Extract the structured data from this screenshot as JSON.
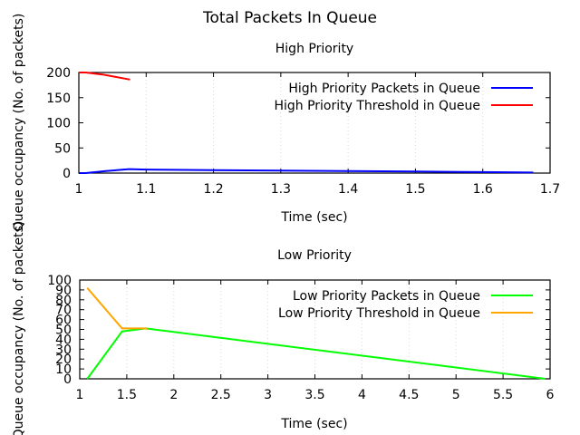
{
  "figure_title": "Total Packets In Queue",
  "chart_data": [
    {
      "type": "line",
      "title": "High Priority",
      "xlabel": "Time (sec)",
      "ylabel": "Queue occupancy (No. of packets)",
      "xlim": [
        1,
        1.7
      ],
      "ylim": [
        0,
        200
      ],
      "xticks": [
        1,
        1.1,
        1.2,
        1.3,
        1.4,
        1.5,
        1.6,
        1.7
      ],
      "xtick_labels": [
        "1",
        "1.1",
        "1.2",
        "1.3",
        "1.4",
        "1.5",
        "1.6",
        "1.7"
      ],
      "yticks": [
        0,
        50,
        100,
        150,
        200
      ],
      "ytick_labels": [
        "0",
        "50",
        "100",
        "150",
        "200"
      ],
      "grid": "vertical dotted",
      "legend_position": "top-right",
      "series": [
        {
          "name": "High Priority Packets in Queue",
          "color": "#0000ff",
          "x": [
            1.0,
            1.01,
            1.04,
            1.075,
            1.1,
            1.2,
            1.3,
            1.4,
            1.5,
            1.6,
            1.675
          ],
          "y": [
            0,
            0,
            4,
            8,
            7,
            6,
            5,
            4,
            3,
            2,
            1
          ]
        },
        {
          "name": "High Priority Threshold in Queue",
          "color": "#ff0000",
          "x": [
            1.0,
            1.01,
            1.035,
            1.076
          ],
          "y": [
            200,
            200,
            196,
            186
          ]
        }
      ]
    },
    {
      "type": "line",
      "title": "Low Priority",
      "xlabel": "Time (sec)",
      "ylabel": "Queue occupancy (No. of packets)",
      "xlim": [
        1,
        6
      ],
      "ylim": [
        0,
        100
      ],
      "xticks": [
        1,
        1.5,
        2,
        2.5,
        3,
        3.5,
        4,
        4.5,
        5,
        5.5,
        6
      ],
      "xtick_labels": [
        "1",
        "1.5",
        "2",
        "2.5",
        "3",
        "3.5",
        "4",
        "4.5",
        "5",
        "5.5",
        "6"
      ],
      "yticks": [
        0,
        10,
        20,
        30,
        40,
        50,
        60,
        70,
        80,
        90,
        100
      ],
      "ytick_labels": [
        "0",
        "10",
        "20",
        "30",
        "40",
        "50",
        "60",
        "70",
        "80",
        "90",
        "100"
      ],
      "grid": "vertical dotted",
      "legend_position": "top-right",
      "series": [
        {
          "name": "Low Priority Packets in Queue",
          "color": "#00ff00",
          "x": [
            1.08,
            1.45,
            1.7,
            5.95
          ],
          "y": [
            0,
            48,
            51,
            0
          ]
        },
        {
          "name": "Low Priority Threshold in Queue",
          "color": "#ffa500",
          "x": [
            1.08,
            1.45,
            1.5,
            1.6,
            1.7,
            1.72
          ],
          "y": [
            92,
            51,
            51,
            51,
            51,
            50
          ]
        }
      ]
    }
  ]
}
